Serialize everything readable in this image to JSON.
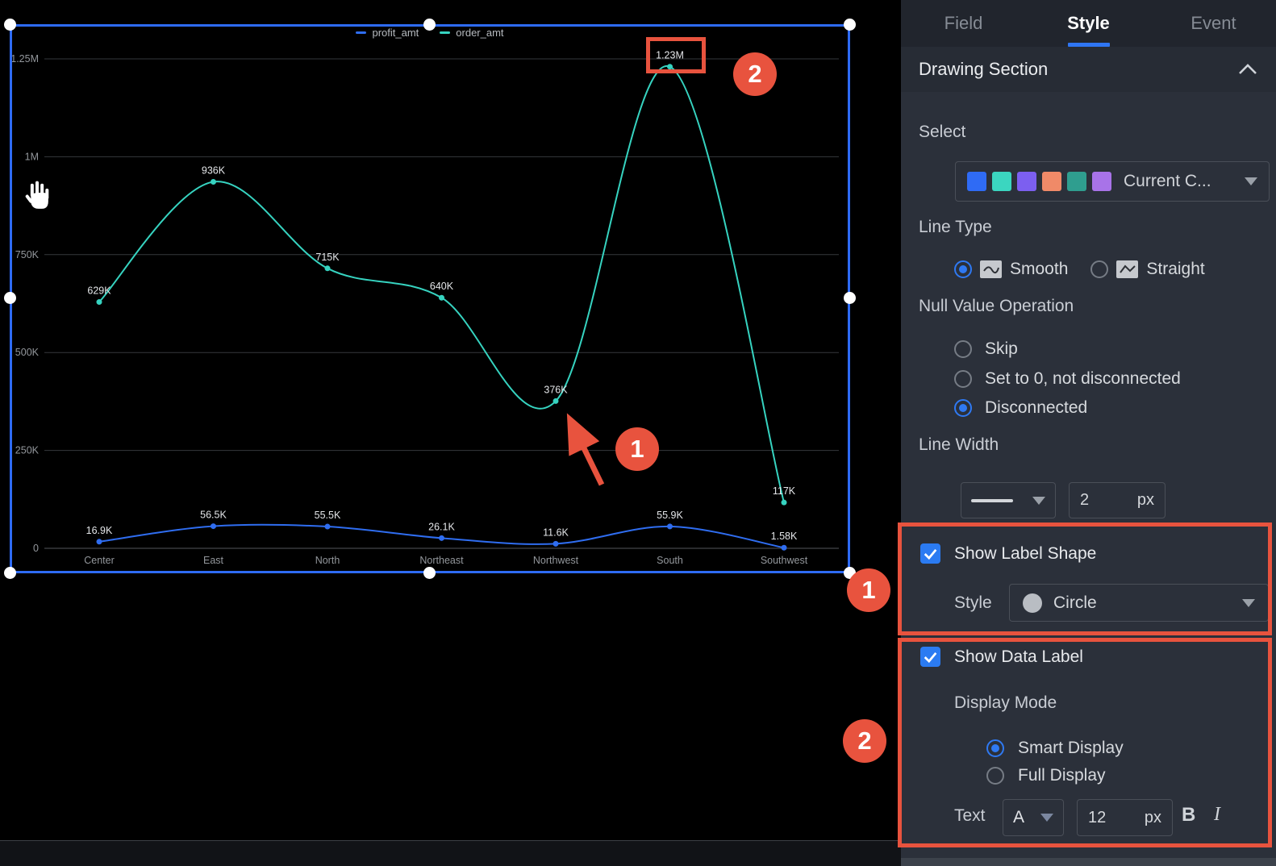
{
  "chart_data": {
    "type": "line",
    "line_style": "smooth",
    "grid": true,
    "legend_position": "top",
    "categories": [
      "Center",
      "East",
      "North",
      "Northeast",
      "Northwest",
      "South",
      "Southwest"
    ],
    "series": [
      {
        "name": "profit_amt",
        "color": "#2f6df0",
        "values": [
          16900,
          56500,
          55500,
          26100,
          11600,
          55900,
          1580
        ],
        "labels": [
          "16.9K",
          "56.5K",
          "55.5K",
          "26.1K",
          "11.6K",
          "55.9K",
          "1.58K"
        ]
      },
      {
        "name": "order_amt",
        "color": "#36d3c0",
        "values": [
          629000,
          936000,
          715000,
          640000,
          376000,
          1230000,
          117000
        ],
        "labels": [
          "629K",
          "936K",
          "715K",
          "640K",
          "376K",
          "1.23M",
          "117K"
        ]
      }
    ],
    "ylim": [
      0,
      1250000
    ],
    "yticks": [
      {
        "v": 0,
        "label": "0"
      },
      {
        "v": 250000,
        "label": "250K"
      },
      {
        "v": 500000,
        "label": "500K"
      },
      {
        "v": 750000,
        "label": "750K"
      },
      {
        "v": 1000000,
        "label": "1M"
      },
      {
        "v": 1250000,
        "label": "1.25M"
      }
    ]
  },
  "panel": {
    "tabs": [
      {
        "label": "Field"
      },
      {
        "label": "Style"
      },
      {
        "label": "Event"
      }
    ],
    "section_title": "Drawing Section",
    "select": {
      "label": "Select",
      "value": "Current C...",
      "swatches": [
        "#2f6bf5",
        "#3bd6c0",
        "#7c5ff0",
        "#f08a68",
        "#2f9e8f",
        "#a873e8"
      ]
    },
    "line_type": {
      "label": "Line Type",
      "options": [
        {
          "label": "Smooth",
          "selected": true
        },
        {
          "label": "Straight",
          "selected": false
        }
      ]
    },
    "null_value": {
      "label": "Null Value Operation",
      "options": [
        {
          "label": "Skip",
          "selected": false
        },
        {
          "label": "Set to 0, not disconnected",
          "selected": false
        },
        {
          "label": "Disconnected",
          "selected": true
        }
      ]
    },
    "line_width": {
      "label": "Line Width",
      "value": "2",
      "unit": "px"
    },
    "label_shape": {
      "checkbox_label": "Show Label Shape",
      "checked": true,
      "style_label": "Style",
      "style_value": "Circle"
    },
    "data_label": {
      "checkbox_label": "Show Data Label",
      "checked": true,
      "display_mode_label": "Display Mode",
      "options": [
        {
          "label": "Smart Display",
          "selected": true
        },
        {
          "label": "Full Display",
          "selected": false
        }
      ],
      "text_label": "Text",
      "font_dropdown": "A",
      "font_size": "12",
      "font_unit": "px",
      "bold_label": "B",
      "italic_label": "I"
    }
  },
  "annotations": {
    "color": "#e8533e",
    "badges": [
      {
        "n": "1"
      },
      {
        "n": "2"
      },
      {
        "n": "1"
      },
      {
        "n": "2"
      }
    ]
  }
}
